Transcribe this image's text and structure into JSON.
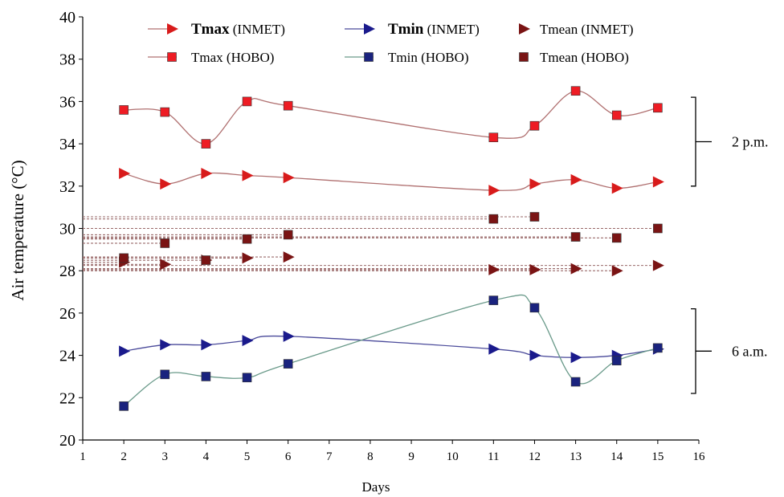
{
  "chart_data": {
    "type": "line",
    "title": "",
    "xlabel": "Days",
    "ylabel": "Air temperature (°C)",
    "xlim": [
      1,
      16
    ],
    "ylim": [
      20,
      40
    ],
    "xticks": [
      1,
      2,
      3,
      4,
      5,
      6,
      7,
      8,
      9,
      10,
      11,
      12,
      13,
      14,
      15,
      16
    ],
    "yticks": [
      20,
      22,
      24,
      26,
      28,
      30,
      32,
      34,
      36,
      38,
      40
    ],
    "series": [
      {
        "name": "Tmax (INMET)",
        "color": "#d81b1b",
        "line": "#b07070",
        "marker": "triangle",
        "x": [
          2,
          3,
          4,
          5,
          6,
          11,
          12,
          13,
          14,
          15
        ],
        "y": [
          32.6,
          32.1,
          32.6,
          32.5,
          32.4,
          31.8,
          32.1,
          32.3,
          31.9,
          32.2
        ]
      },
      {
        "name": "Tmin (INMET)",
        "color": "#1a1a8c",
        "line": "#4a4a9a",
        "marker": "triangle",
        "x": [
          2,
          3,
          4,
          5,
          6,
          11,
          12,
          13,
          14,
          15
        ],
        "y": [
          24.2,
          24.5,
          24.5,
          24.7,
          24.9,
          24.3,
          24.0,
          23.9,
          24.0,
          24.3
        ]
      },
      {
        "name": "Tmean (INMET)",
        "color": "#7a1414",
        "line": "#9a6a6a",
        "marker": "triangle",
        "dashed": true,
        "x": [
          2,
          3,
          4,
          5,
          6,
          11,
          12,
          13,
          14,
          15
        ],
        "y": [
          28.4,
          28.3,
          28.5,
          28.6,
          28.65,
          28.05,
          28.05,
          28.1,
          28.0,
          28.25
        ]
      },
      {
        "name": "Tmax (HOBO)",
        "color": "#ee1c24",
        "line": "#b07070",
        "marker": "square",
        "x": [
          2,
          3,
          4,
          5,
          6,
          11,
          12,
          13,
          14,
          15
        ],
        "y": [
          35.6,
          35.5,
          34.0,
          36.0,
          35.8,
          34.3,
          34.85,
          36.5,
          35.35,
          35.7
        ]
      },
      {
        "name": "Tmin (HOBO)",
        "color": "#1a237e",
        "line": "#6a9a8a",
        "marker": "square",
        "x": [
          2,
          3,
          4,
          5,
          6,
          11,
          12,
          13,
          14,
          15
        ],
        "y": [
          21.6,
          23.1,
          23.0,
          22.95,
          23.6,
          26.6,
          26.25,
          22.75,
          23.75,
          24.35
        ]
      },
      {
        "name": "Tmean (HOBO)",
        "color": "#7a1414",
        "line": "#9a6a6a",
        "marker": "square",
        "dashed": true,
        "x": [
          2,
          3,
          4,
          5,
          6,
          11,
          12,
          13,
          14,
          15
        ],
        "y": [
          28.6,
          29.3,
          28.5,
          29.5,
          29.7,
          30.45,
          30.55,
          29.6,
          29.55,
          30.0
        ]
      }
    ],
    "legend": {
      "placement": "top",
      "entries": [
        {
          "name": "Tmax",
          "suffix": " (INMET)"
        },
        {
          "name": "Tmin",
          "suffix": " (INMET)"
        },
        {
          "name": "Tmean",
          "suffix": " (INMET)"
        },
        {
          "name": "Tmax",
          "suffix": " (HOBO)"
        },
        {
          "name": "Tmin",
          "suffix": " (HOBO)"
        },
        {
          "name": "Tmean",
          "suffix": " (HOBO)"
        }
      ]
    },
    "annotations": [
      {
        "text": "2 p.m.",
        "y_range": [
          32,
          36.2
        ]
      },
      {
        "text": "6 a.m.",
        "y_range": [
          22.2,
          26.2
        ]
      }
    ]
  }
}
